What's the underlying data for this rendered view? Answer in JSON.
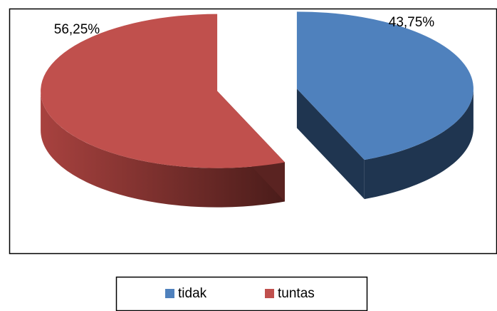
{
  "chart_data": {
    "type": "pie",
    "categories": [
      "tidak",
      "tuntas"
    ],
    "values": [
      43.75,
      56.25
    ],
    "value_labels": [
      "43,75%",
      "56,25%"
    ],
    "colors": [
      "#4f81bd",
      "#c0504d"
    ],
    "legend": "bottom"
  }
}
